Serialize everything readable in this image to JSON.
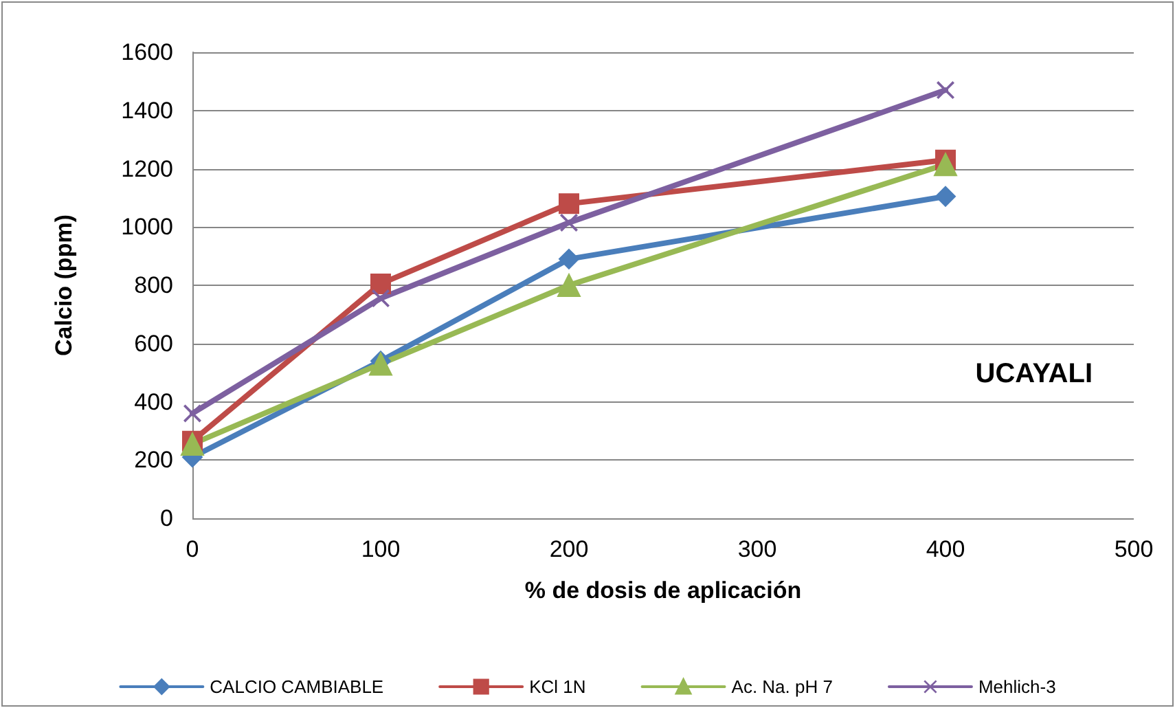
{
  "chart_data": {
    "type": "line",
    "xlabel": "% de dosis de aplicación",
    "ylabel": "Calcio (ppm)",
    "annotations": [
      "UCAYALI"
    ],
    "x": [
      0,
      100,
      200,
      400
    ],
    "series": [
      {
        "name": "CALCIO CAMBIABLE",
        "color": "#4a7ebb",
        "marker": "diamond",
        "values": [
          210,
          540,
          890,
          1105
        ]
      },
      {
        "name": "KCl 1N",
        "color": "#be4b48",
        "marker": "square",
        "values": [
          265,
          805,
          1080,
          1230
        ]
      },
      {
        "name": "Ac. Na. pH 7",
        "color": "#98b954",
        "marker": "triangle",
        "values": [
          255,
          530,
          800,
          1215
        ]
      },
      {
        "name": "Mehlich-3",
        "color": "#7d60a0",
        "marker": "cross",
        "values": [
          360,
          755,
          1015,
          1470
        ]
      }
    ],
    "xlim": [
      0,
      500
    ],
    "xticks": [
      0,
      100,
      200,
      300,
      400,
      500
    ],
    "ylim": [
      0,
      1600
    ],
    "yticks": [
      0,
      200,
      400,
      600,
      800,
      1000,
      1200,
      1400,
      1600
    ],
    "grid": "y",
    "legend": "bottom",
    "line_style": "solid"
  }
}
